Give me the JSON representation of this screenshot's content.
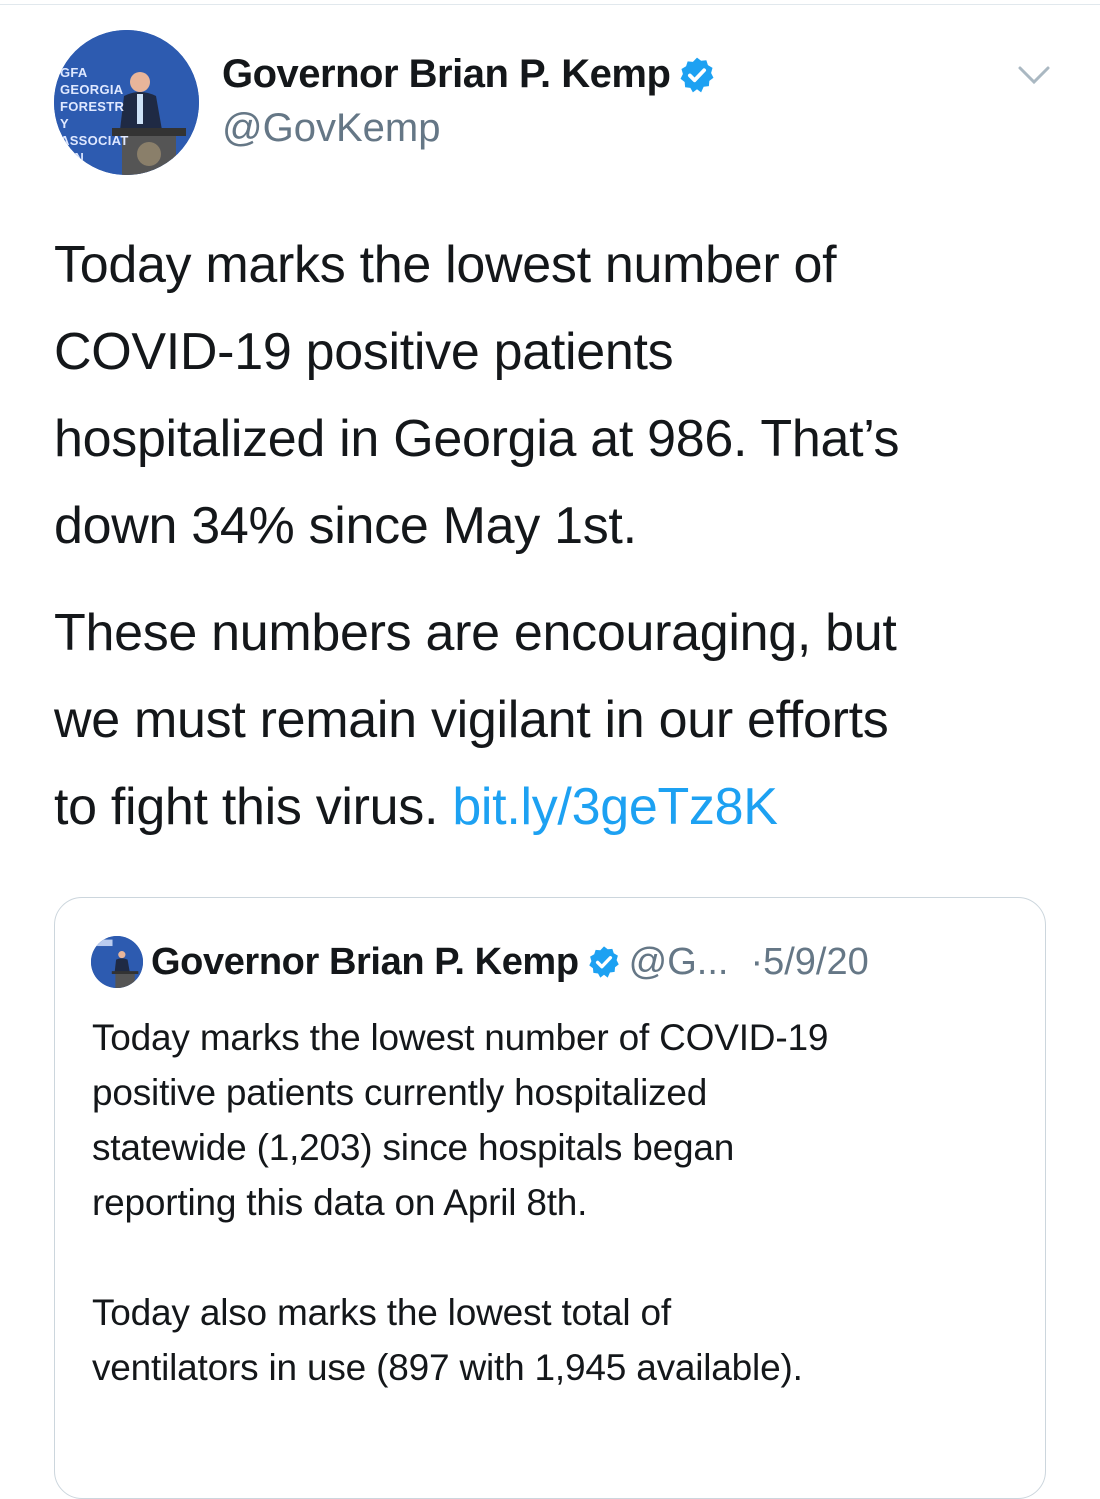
{
  "tweet": {
    "author_name": "Governor Brian P. Kemp",
    "handle": "@GovKemp",
    "verified": true,
    "avatar_icon": "profile-photo-governor-at-podium",
    "avatar_logo_text": "GFA GEORGIA FORESTRY ASSOCIATION",
    "menu_icon": "chevron-down-icon",
    "paragraph1_lines": [
      "Today marks the lowest number of",
      "COVID-19 positive patients",
      "hospitalized in Georgia at 986. That’s",
      "down 34% since May 1st."
    ],
    "paragraph2_lines": [
      "These numbers are encouraging, but",
      "we must remain vigilant in our efforts"
    ],
    "paragraph2_last_text": "to fight this virus. ",
    "link": "bit.ly/3geTz8K"
  },
  "quoted_tweet": {
    "author_name": "Governor Brian P. Kemp",
    "handle": "@G...",
    "date": "·5/9/20",
    "lines": [
      "Today marks the lowest number of COVID-19",
      "positive patients currently hospitalized",
      "statewide (1,203) since hospitals began",
      "reporting this data on April 8th.",
      "",
      "Today also marks the lowest total of",
      "ventilators in use (897 with 1,945 available)."
    ]
  },
  "colors": {
    "link": "#1da1f2",
    "verified": "#1da1f2",
    "secondary_text": "#657786",
    "border": "#ccd6dd"
  }
}
